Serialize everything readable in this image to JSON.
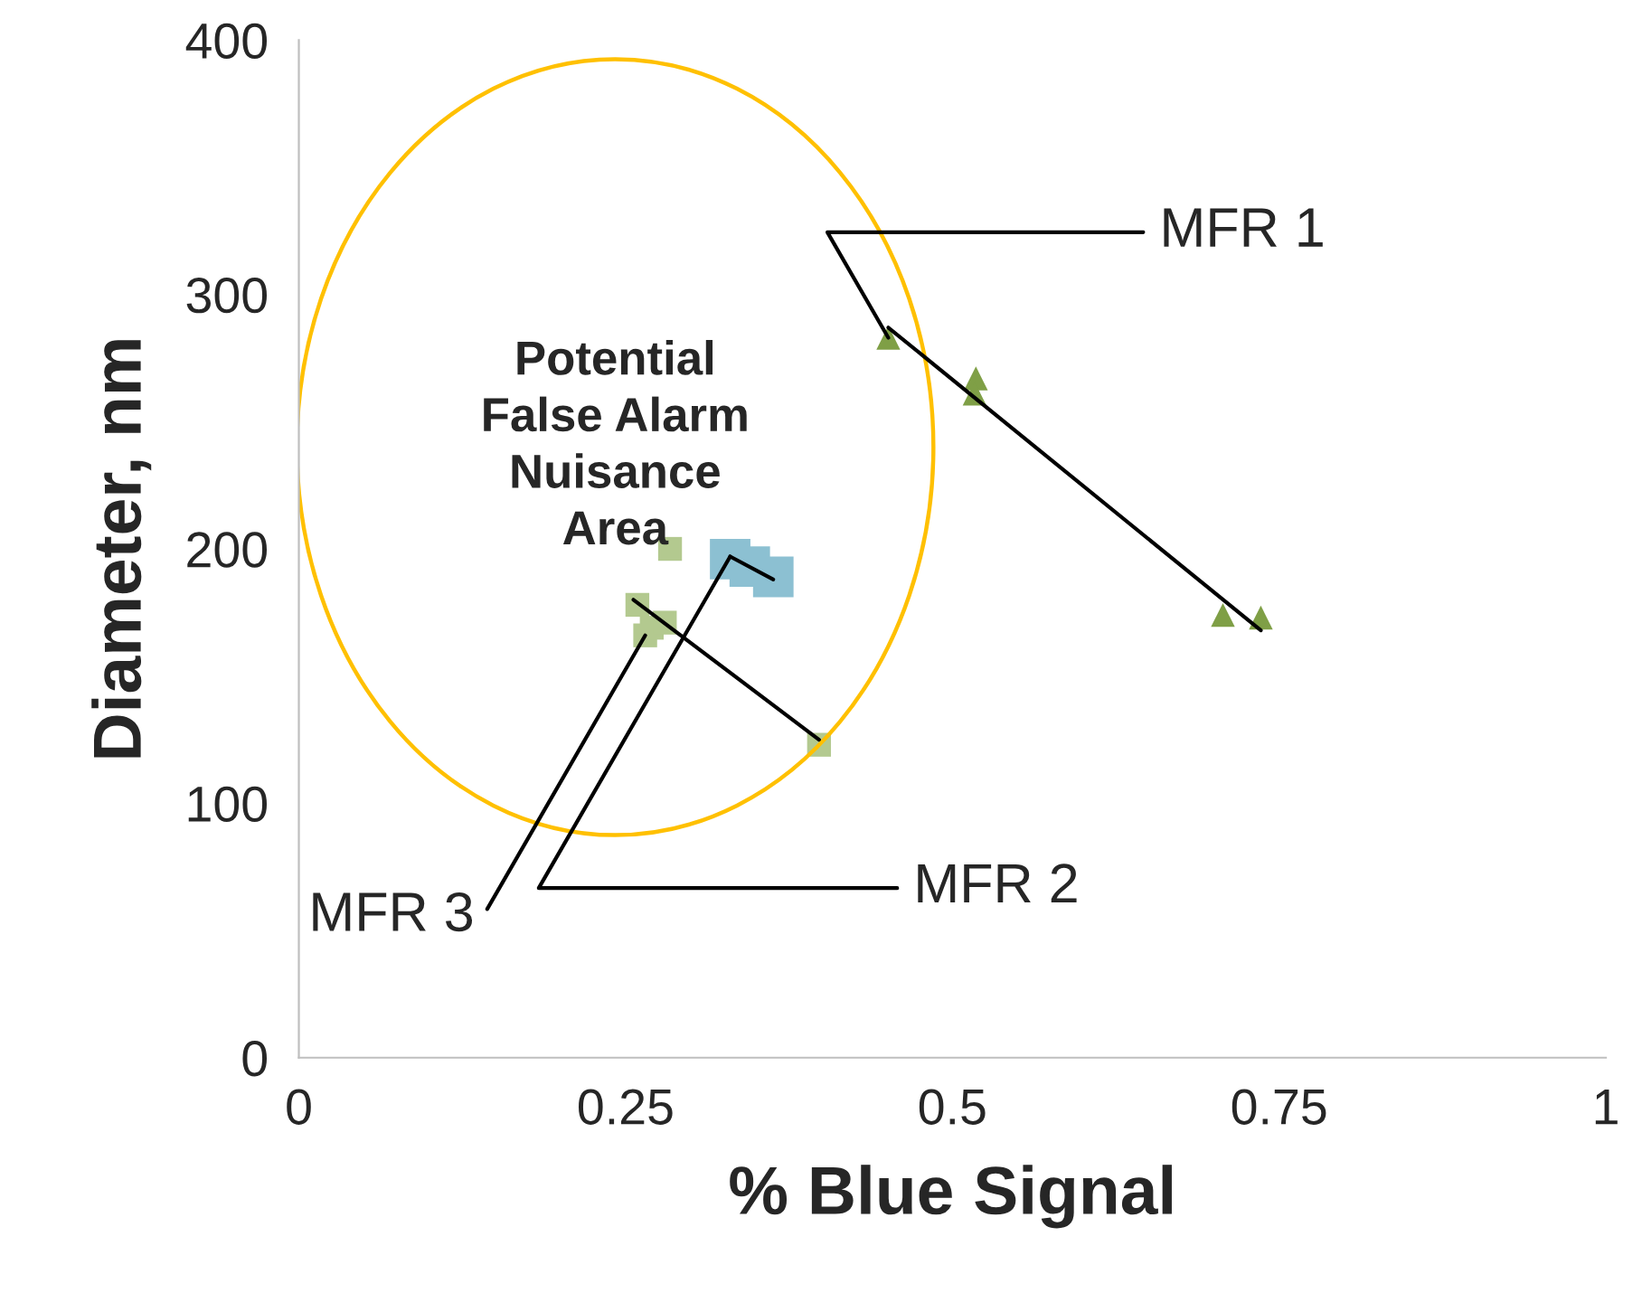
{
  "chart_data": {
    "type": "scatter",
    "xlabel": "% Blue Signal",
    "ylabel": "Diameter, nm",
    "xlim": [
      0,
      1
    ],
    "xticks": [
      0,
      0.25,
      0.5,
      0.75,
      1
    ],
    "ylim": [
      0,
      400
    ],
    "yticks": [
      0,
      100,
      200,
      300,
      400
    ],
    "grid": false,
    "legend": false,
    "series": [
      {
        "marker": "triangle",
        "color": "#7f9f46",
        "x": [
          0.451,
          0.518,
          0.517,
          0.707,
          0.736
        ],
        "values": [
          283,
          267,
          261,
          174,
          173
        ]
      },
      {
        "marker": "square",
        "color": "#8cc0d2",
        "x": [
          0.33,
          0.345,
          0.363
        ],
        "values": [
          196,
          193,
          189
        ]
      },
      {
        "marker": "square",
        "color": "#b3c98f",
        "x": [
          0.284,
          0.259,
          0.265,
          0.27,
          0.28,
          0.398
        ],
        "values": [
          200,
          178,
          166,
          169,
          171,
          123
        ]
      },
      {
        "type": "line",
        "color": "#000000",
        "x": [
          0.451,
          0.736
        ],
        "values": [
          287,
          168
        ]
      },
      {
        "type": "line",
        "color": "#000000",
        "x": [
          0.33,
          0.363
        ],
        "values": [
          197,
          188
        ]
      },
      {
        "type": "line",
        "color": "#000000",
        "x": [
          0.256,
          0.398
        ],
        "values": [
          180,
          125
        ]
      }
    ],
    "annotations": [
      "Potential\nFalse Alarm\nNuisance\nArea",
      {
        "text": "MFR 1",
        "x": 0.451,
        "y": 283
      },
      {
        "text": "MFR 2",
        "x": 0.33,
        "y": 197
      },
      {
        "text": "MFR 3",
        "x": 0.265,
        "y": 166
      }
    ]
  }
}
